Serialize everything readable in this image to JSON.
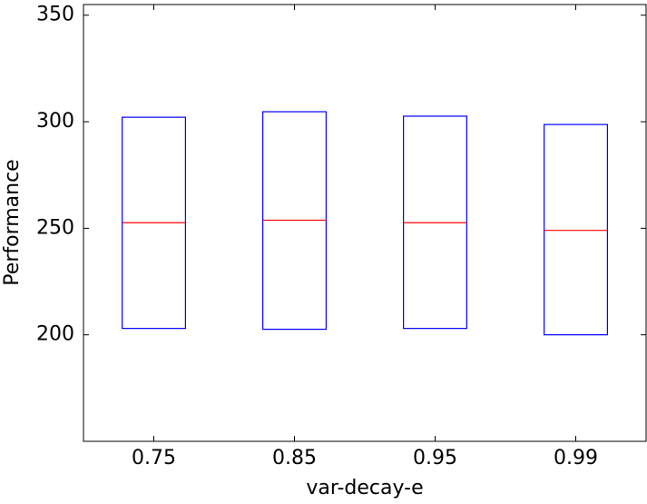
{
  "chart_data": {
    "type": "box",
    "xlabel": "var-decay-e",
    "ylabel": "Performance",
    "categories": [
      "0.75",
      "0.85",
      "0.95",
      "0.99"
    ],
    "q1": [
      203,
      202.6,
      203,
      200
    ],
    "median": [
      252.6,
      253.8,
      252.6,
      249
    ],
    "q3": [
      302.1,
      304.7,
      302.6,
      298.7
    ],
    "box_color": "#0000ff",
    "median_color": "#ff0000",
    "ylim": [
      150,
      355
    ],
    "yticks": [
      200,
      250,
      300,
      350
    ],
    "grid": false
  }
}
